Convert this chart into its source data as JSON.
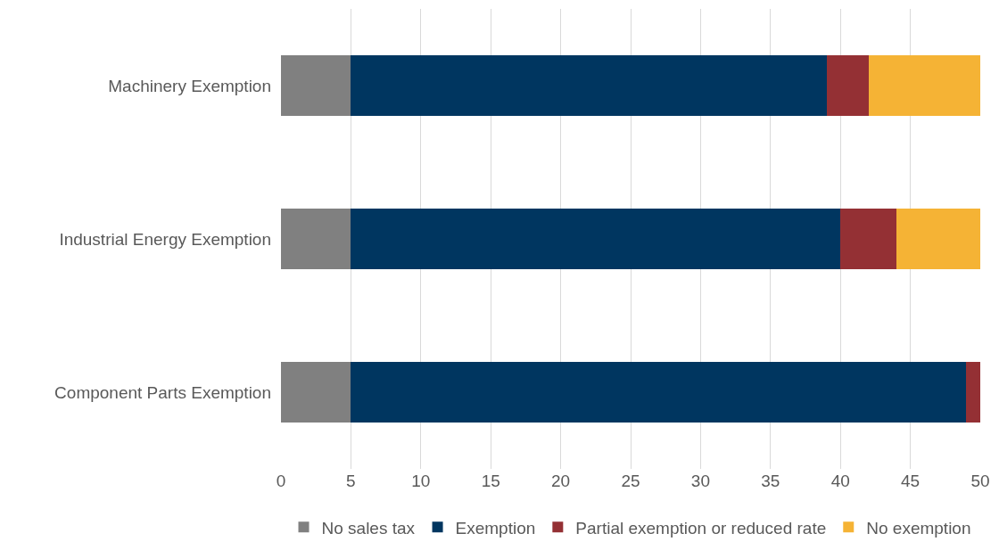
{
  "chart_data": {
    "type": "bar",
    "orientation": "horizontal",
    "stacked": true,
    "categories": [
      "Machinery Exemption",
      "Industrial Energy Exemption",
      "Component Parts Exemption"
    ],
    "series": [
      {
        "name": "No sales tax",
        "color": "#808080",
        "values": [
          5,
          5,
          5
        ]
      },
      {
        "name": "Exemption",
        "color": "#003660",
        "values": [
          34,
          35,
          44
        ]
      },
      {
        "name": "Partial exemption or reduced rate",
        "color": "#943034",
        "values": [
          3,
          4,
          1
        ]
      },
      {
        "name": "No exemption",
        "color": "#f5b335",
        "values": [
          8,
          6,
          0
        ]
      }
    ],
    "xlim": [
      0,
      50
    ],
    "xticks": [
      0,
      5,
      10,
      15,
      20,
      25,
      30,
      35,
      40,
      45,
      50
    ],
    "grid": "x",
    "legend": "bottom"
  }
}
